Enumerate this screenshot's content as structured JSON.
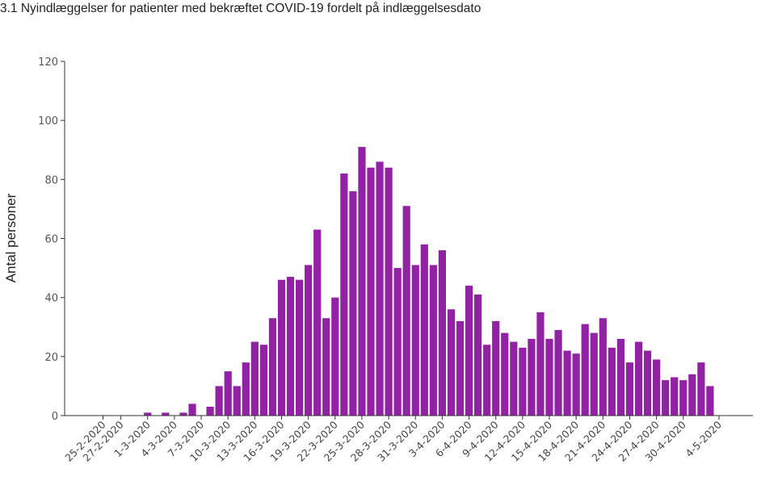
{
  "chart_data": {
    "type": "bar",
    "title": "3.1 Nyindlæggelser for patienter med bekræftet COVID-19 fordelt på indlæggelsesdato",
    "xlabel": "",
    "ylabel": "Antal personer",
    "ylim": [
      0,
      120
    ],
    "yticks": [
      0,
      20,
      40,
      60,
      80,
      100,
      120
    ],
    "grid": false,
    "bar_color": "#9222a4",
    "x_tick_labels": [
      "25-2-2020",
      "27-2-2020",
      "1-3-2020",
      "4-3-2020",
      "7-3-2020",
      "10-3-2020",
      "13-3-2020",
      "16-3-2020",
      "19-3-2020",
      "22-3-2020",
      "25-3-2020",
      "28-3-2020",
      "31-3-2020",
      "3-4-2020",
      "6-4-2020",
      "9-4-2020",
      "12-4-2020",
      "15-4-2020",
      "18-4-2020",
      "21-4-2020",
      "24-4-2020",
      "27-4-2020",
      "30-4-2020",
      "4-5-2020"
    ],
    "categories": [
      "25-2-2020",
      "26-2-2020",
      "27-2-2020",
      "28-2-2020",
      "29-2-2020",
      "1-3-2020",
      "2-3-2020",
      "3-3-2020",
      "4-3-2020",
      "5-3-2020",
      "6-3-2020",
      "7-3-2020",
      "8-3-2020",
      "9-3-2020",
      "10-3-2020",
      "11-3-2020",
      "12-3-2020",
      "13-3-2020",
      "14-3-2020",
      "15-3-2020",
      "16-3-2020",
      "17-3-2020",
      "18-3-2020",
      "19-3-2020",
      "20-3-2020",
      "21-3-2020",
      "22-3-2020",
      "23-3-2020",
      "24-3-2020",
      "25-3-2020",
      "26-3-2020",
      "27-3-2020",
      "28-3-2020",
      "29-3-2020",
      "30-3-2020",
      "31-3-2020",
      "1-4-2020",
      "2-4-2020",
      "3-4-2020",
      "4-4-2020",
      "5-4-2020",
      "6-4-2020",
      "7-4-2020",
      "8-4-2020",
      "9-4-2020",
      "10-4-2020",
      "11-4-2020",
      "12-4-2020",
      "13-4-2020",
      "14-4-2020",
      "15-4-2020",
      "16-4-2020",
      "17-4-2020",
      "18-4-2020",
      "19-4-2020",
      "20-4-2020",
      "21-4-2020",
      "22-4-2020",
      "23-4-2020",
      "24-4-2020",
      "25-4-2020",
      "26-4-2020",
      "27-4-2020",
      "28-4-2020",
      "29-4-2020",
      "30-4-2020",
      "1-5-2020",
      "2-5-2020",
      "3-5-2020",
      "4-5-2020"
    ],
    "values": [
      0,
      0,
      0,
      0,
      0,
      1,
      0,
      1,
      0,
      1,
      4,
      0,
      3,
      10,
      15,
      10,
      18,
      25,
      24,
      33,
      46,
      47,
      46,
      51,
      63,
      33,
      40,
      82,
      76,
      91,
      84,
      86,
      84,
      50,
      71,
      51,
      58,
      51,
      56,
      36,
      32,
      44,
      41,
      24,
      32,
      28,
      25,
      23,
      26,
      35,
      26,
      29,
      22,
      21,
      31,
      28,
      33,
      23,
      26,
      18,
      25,
      22,
      19,
      12,
      13,
      12,
      14,
      18,
      10,
      0
    ]
  }
}
